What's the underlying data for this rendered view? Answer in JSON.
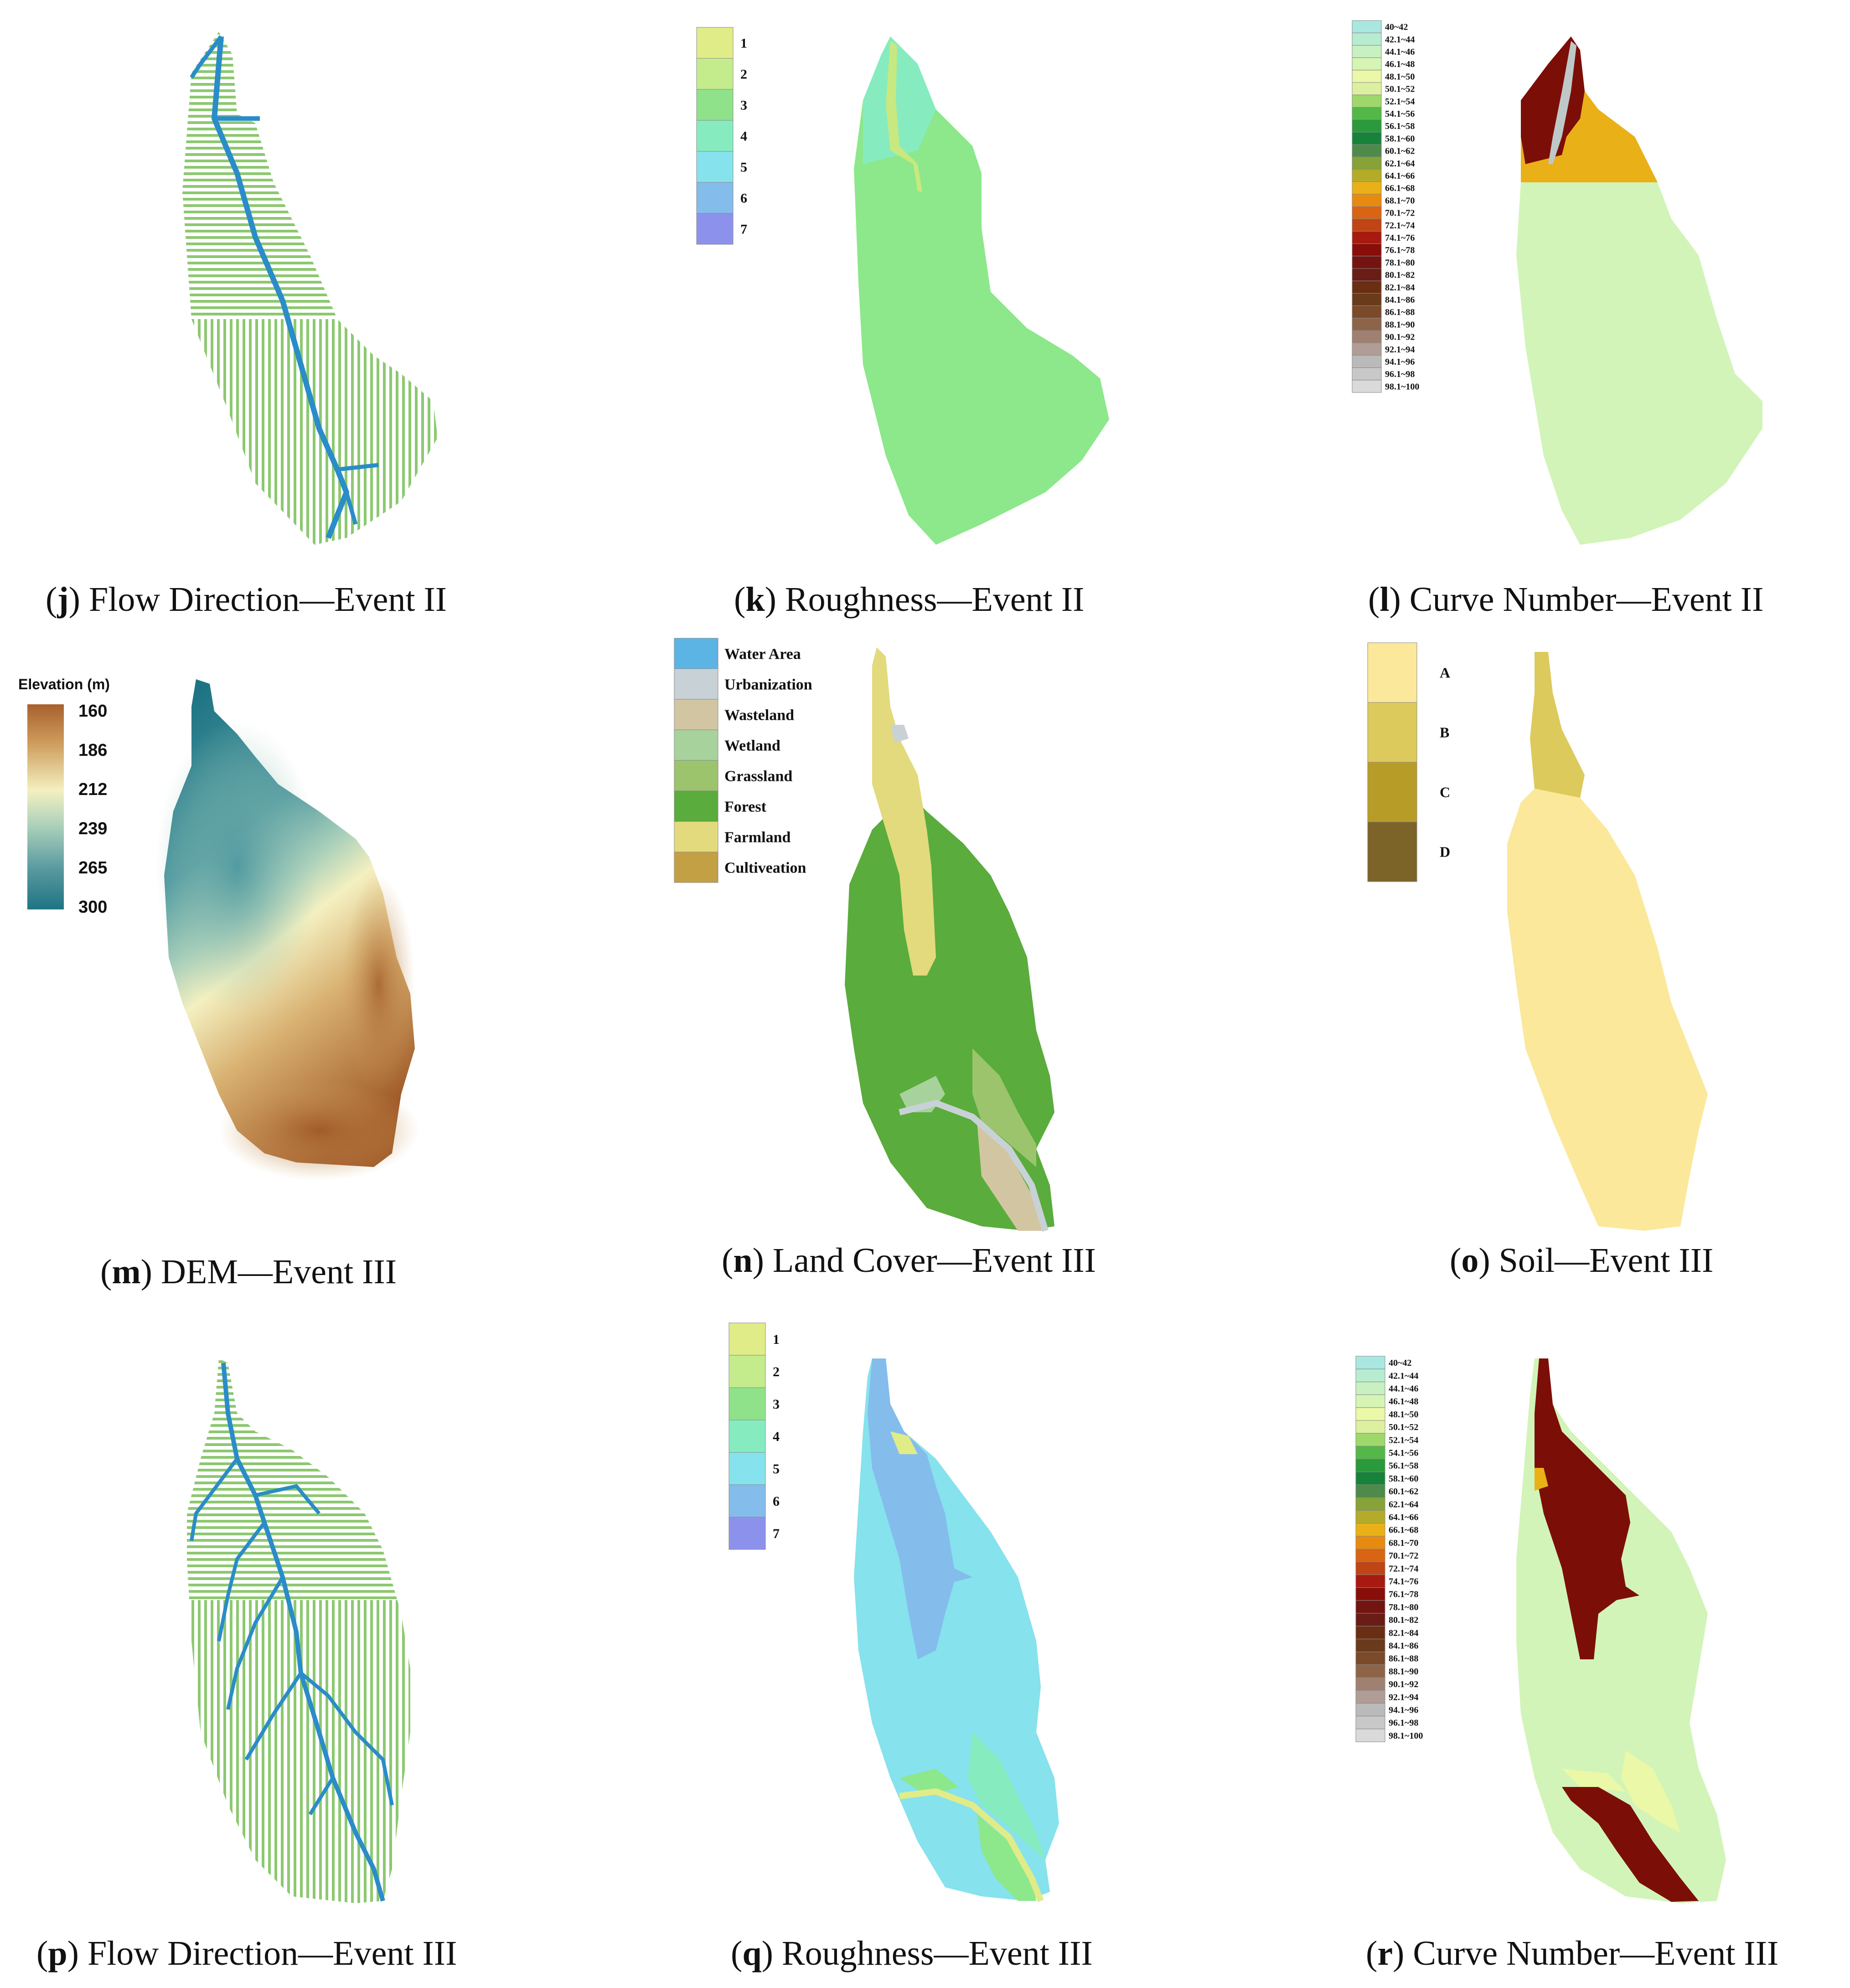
{
  "captions": {
    "j": {
      "letter": "j",
      "text": "Flow Direction—Event II"
    },
    "k": {
      "letter": "k",
      "text": "Roughness—Event II"
    },
    "l": {
      "letter": "l",
      "text": "Curve Number—Event II"
    },
    "m": {
      "letter": "m",
      "text": "DEM—Event III"
    },
    "n": {
      "letter": "n",
      "text": "Land Cover—Event III"
    },
    "o": {
      "letter": "o",
      "text": "Soil—Event III"
    },
    "p": {
      "letter": "p",
      "text": "Flow Direction—Event III"
    },
    "q": {
      "letter": "q",
      "text": "Roughness—Event III"
    },
    "r": {
      "letter": "r",
      "text": "Curve Number—Event III"
    }
  },
  "roughness_legend": [
    {
      "label": "1",
      "color": "#e0ec88"
    },
    {
      "label": "2",
      "color": "#c4ec8c"
    },
    {
      "label": "3",
      "color": "#8fe28a"
    },
    {
      "label": "4",
      "color": "#86ecc0"
    },
    {
      "label": "5",
      "color": "#86e2ec"
    },
    {
      "label": "6",
      "color": "#84bcec"
    },
    {
      "label": "7",
      "color": "#8c92ec"
    }
  ],
  "curve_number_legend": [
    {
      "label": "40~42",
      "color": "#a9e8e0"
    },
    {
      "label": "42.1~44",
      "color": "#b8ecd0"
    },
    {
      "label": "44.1~46",
      "color": "#c8f0c0"
    },
    {
      "label": "46.1~48",
      "color": "#d6f4b4"
    },
    {
      "label": "48.1~50",
      "color": "#eaf8a8"
    },
    {
      "label": "50.1~52",
      "color": "#dcf0a0"
    },
    {
      "label": "52.1~54",
      "color": "#9ed86a"
    },
    {
      "label": "54.1~56",
      "color": "#54b848"
    },
    {
      "label": "56.1~58",
      "color": "#2a9a3c"
    },
    {
      "label": "58.1~60",
      "color": "#17833a"
    },
    {
      "label": "60.1~62",
      "color": "#4e8a4a"
    },
    {
      "label": "62.1~64",
      "color": "#86a238"
    },
    {
      "label": "64.1~66",
      "color": "#b4ac28"
    },
    {
      "label": "66.1~68",
      "color": "#eab018"
    },
    {
      "label": "68.1~70",
      "color": "#e88a10"
    },
    {
      "label": "70.1~72",
      "color": "#d86414"
    },
    {
      "label": "72.1~74",
      "color": "#c04414"
    },
    {
      "label": "74.1~76",
      "color": "#a81a10"
    },
    {
      "label": "76.1~78",
      "color": "#880e0a"
    },
    {
      "label": "78.1~80",
      "color": "#741410"
    },
    {
      "label": "80.1~82",
      "color": "#6a1c16"
    },
    {
      "label": "82.1~84",
      "color": "#6a2e12"
    },
    {
      "label": "84.1~86",
      "color": "#6a3a1c"
    },
    {
      "label": "86.1~88",
      "color": "#7a4a2a"
    },
    {
      "label": "88.1~90",
      "color": "#8e6448"
    },
    {
      "label": "90.1~92",
      "color": "#a08070"
    },
    {
      "label": "92.1~94",
      "color": "#b09e96"
    },
    {
      "label": "94.1~96",
      "color": "#bababa"
    },
    {
      "label": "96.1~98",
      "color": "#c8c8c8"
    },
    {
      "label": "98.1~100",
      "color": "#dadada"
    }
  ],
  "dem_legend": {
    "title": "Elevation (m)",
    "ticks": [
      "160",
      "186",
      "212",
      "239",
      "265",
      "300"
    ],
    "gradient": [
      "#a8602c",
      "#d0a060",
      "#f4f0c0",
      "#a8cfba",
      "#5a9aa0",
      "#1e7484"
    ]
  },
  "landcover_legend": [
    {
      "label": "Water Area",
      "color": "#5cb4e4"
    },
    {
      "label": "Urbanization",
      "color": "#c8d2d6"
    },
    {
      "label": "Wasteland",
      "color": "#d2c6a2"
    },
    {
      "label": "Wetland",
      "color": "#a8d29c"
    },
    {
      "label": "Grassland",
      "color": "#9cc46c"
    },
    {
      "label": "Forest",
      "color": "#5aac3c"
    },
    {
      "label": "Farmland",
      "color": "#e2da7c"
    },
    {
      "label": "Cultiveation",
      "color": "#c4a044"
    }
  ],
  "soil_legend": [
    {
      "label": "A",
      "color": "#fbe89a"
    },
    {
      "label": "B",
      "color": "#dcca5c"
    },
    {
      "label": "C",
      "color": "#b89c28"
    },
    {
      "label": "D",
      "color": "#7c6428"
    }
  ],
  "colors": {
    "flow_lines": "#8cc870",
    "flow_stream": "#2a8cc8",
    "cn_light": "#d2f4b8",
    "cn_dark": "#7c0e08",
    "cn_orange": "#eab018",
    "forest": "#5aac3c",
    "farmland": "#e2da7c",
    "soil_a": "#fbe89a",
    "soil_b": "#dcca5c",
    "rough3": "#8ce88a",
    "rough4": "#86ecc0",
    "rough5": "#86e2ec",
    "rough6": "#84bcec"
  }
}
